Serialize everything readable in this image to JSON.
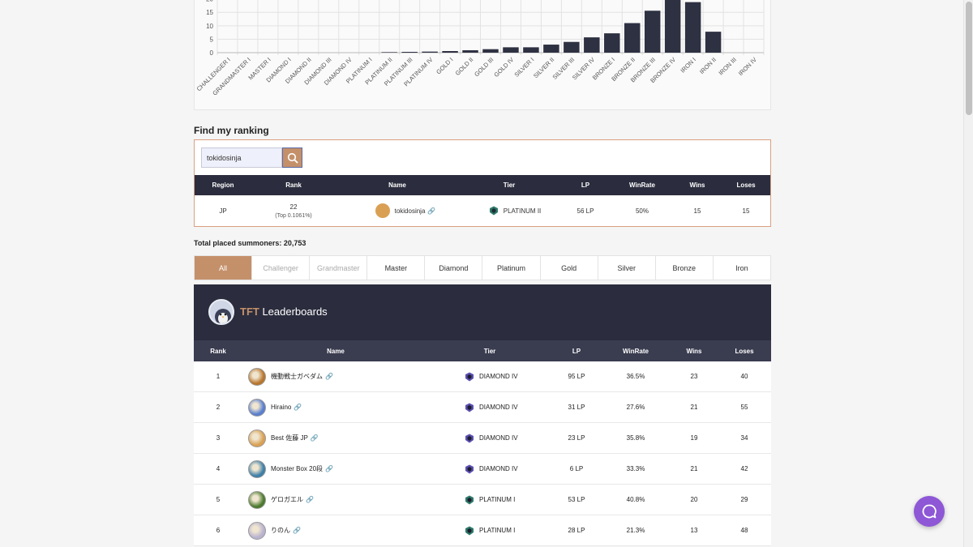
{
  "chart_data": {
    "type": "bar",
    "categories": [
      "CHALLENGER I",
      "GRANDMASTER I",
      "MASTER I",
      "DIAMOND I",
      "DIAMOND II",
      "DIAMOND III",
      "DIAMOND IV",
      "PLATINUM I",
      "PLATINUM II",
      "PLATINUM III",
      "PLATINUM IV",
      "GOLD I",
      "GOLD II",
      "GOLD III",
      "GOLD IV",
      "SILVER I",
      "SILVER II",
      "SILVER III",
      "SILVER IV",
      "BRONZE I",
      "BRONZE II",
      "BRONZE III",
      "BRONZE IV",
      "IRON I",
      "IRON II",
      "IRON III",
      "IRON IV"
    ],
    "values": [
      0,
      0,
      0,
      0,
      0,
      0,
      0,
      0,
      0.2,
      0.3,
      0.4,
      0.6,
      0.9,
      1.3,
      2.0,
      2.0,
      3.0,
      4.0,
      5.7,
      7.2,
      11.0,
      15.6,
      20.8,
      18.8,
      7.8,
      0,
      0
    ],
    "yticks": [
      "0",
      "5",
      "10",
      "15",
      "20"
    ],
    "ylim": [
      0,
      22
    ],
    "bar_color": "#2e3142"
  },
  "find": {
    "title": "Find my ranking",
    "search_value": "tokidosinja",
    "headers": {
      "region": "Region",
      "rank": "Rank",
      "name": "Name",
      "tier": "Tier",
      "lp": "LP",
      "winrate": "WinRate",
      "wins": "Wins",
      "loses": "Loses"
    },
    "result": {
      "region": "JP",
      "rank": "22",
      "top": "(Top 0.1061%)",
      "name": "tokidosinja",
      "tier": "PLATINUM II",
      "lp": "56 LP",
      "winrate": "50%",
      "wins": "15",
      "loses": "15"
    }
  },
  "total": "Total placed summoners: 20,753",
  "tabs": [
    "All",
    "Challenger",
    "Grandmaster",
    "Master",
    "Diamond",
    "Platinum",
    "Gold",
    "Silver",
    "Bronze",
    "Iron"
  ],
  "leaderboard": {
    "title_accent": "TFT",
    "title_rest": "Leaderboards",
    "headers": {
      "rank": "Rank",
      "name": "Name",
      "tier": "Tier",
      "lp": "LP",
      "winrate": "WinRate",
      "wins": "Wins",
      "loses": "Loses"
    },
    "rows": [
      {
        "rank": "1",
        "name": "機動戦士ガベダム",
        "tier": "DIAMOND IV",
        "lp": "95 LP",
        "winrate": "36.5%",
        "wins": "23",
        "loses": "40",
        "avatar": "#b8762e",
        "tier_color": "#5b4fb0"
      },
      {
        "rank": "2",
        "name": "Hiraino",
        "tier": "DIAMOND IV",
        "lp": "31 LP",
        "winrate": "27.6%",
        "wins": "21",
        "loses": "55",
        "avatar": "#5a7fcf",
        "tier_color": "#5b4fb0"
      },
      {
        "rank": "3",
        "name": "Best 佐藤 JP",
        "tier": "DIAMOND IV",
        "lp": "23 LP",
        "winrate": "35.8%",
        "wins": "19",
        "loses": "34",
        "avatar": "#d9a054",
        "tier_color": "#5b4fb0"
      },
      {
        "rank": "4",
        "name": "Monster Box 20段",
        "tier": "DIAMOND IV",
        "lp": "6 LP",
        "winrate": "33.3%",
        "wins": "21",
        "loses": "42",
        "avatar": "#3f7fa8",
        "tier_color": "#5b4fb0"
      },
      {
        "rank": "5",
        "name": "ゲロガエル",
        "tier": "PLATINUM I",
        "lp": "53 LP",
        "winrate": "40.8%",
        "wins": "20",
        "loses": "29",
        "avatar": "#4b7a2e",
        "tier_color": "#2f7a6a"
      },
      {
        "rank": "6",
        "name": "りのん",
        "tier": "PLATINUM I",
        "lp": "28 LP",
        "winrate": "21.3%",
        "wins": "13",
        "loses": "48",
        "avatar": "#b9b3cf",
        "tier_color": "#2f7a6a"
      }
    ]
  }
}
